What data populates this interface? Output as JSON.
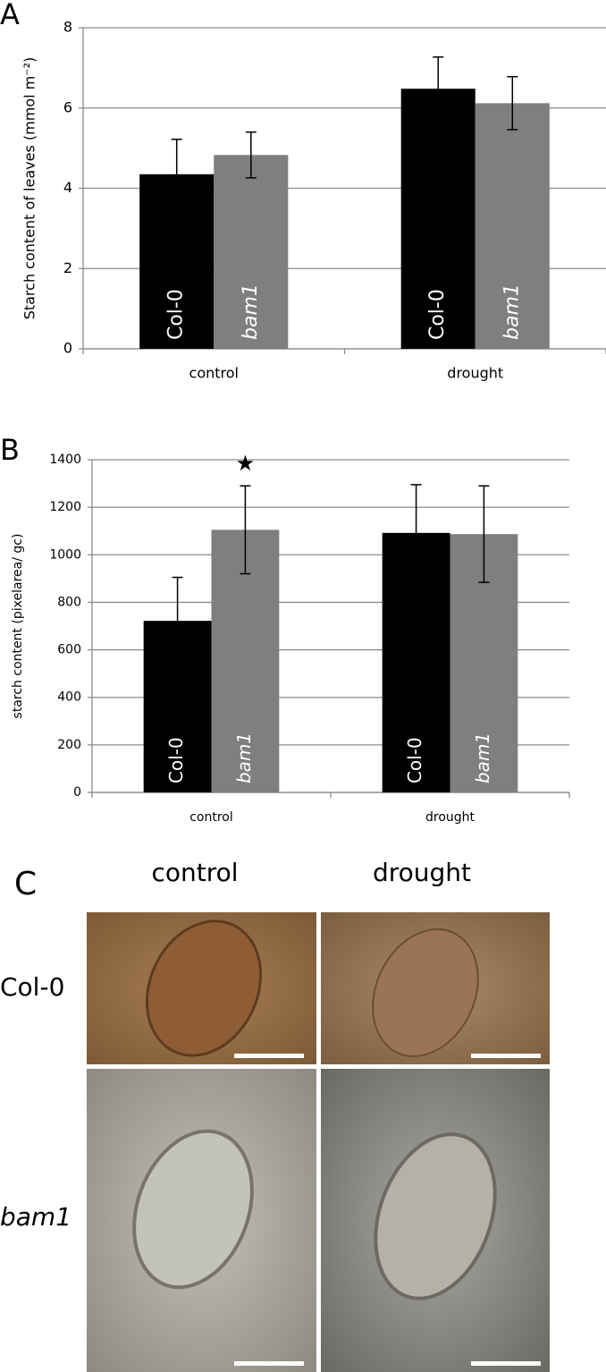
{
  "chart_data": [
    {
      "type": "bar",
      "panel": "A",
      "y_label": "Starch content of leaves (mmol m⁻²)",
      "categories": [
        "control",
        "drought"
      ],
      "series": [
        {
          "name": "Col-0",
          "color": "#000000",
          "values": [
            4.35,
            6.48
          ],
          "errors": [
            0.87,
            0.79
          ]
        },
        {
          "name": "bam1",
          "color": "#7f7f7f",
          "values": [
            4.83,
            6.12
          ],
          "errors": [
            0.57,
            0.66
          ]
        }
      ],
      "ylim": [
        0,
        8
      ],
      "yticks": [
        0,
        2,
        4,
        6,
        8
      ],
      "grid": true
    },
    {
      "type": "bar",
      "panel": "B",
      "y_label": "starch content (pixelarea/ gc)",
      "categories": [
        "control",
        "drought"
      ],
      "series": [
        {
          "name": "Col-0",
          "color": "#000000",
          "values": [
            722,
            1092
          ],
          "errors": [
            183,
            203
          ]
        },
        {
          "name": "bam1",
          "color": "#7f7f7f",
          "values": [
            1105,
            1087
          ],
          "errors": [
            185,
            203
          ],
          "significance": [
            "★",
            null
          ]
        }
      ],
      "ylim": [
        0,
        1400
      ],
      "yticks": [
        0,
        200,
        400,
        600,
        800,
        1000,
        1200,
        1400
      ],
      "grid": true
    }
  ],
  "panel_c": {
    "panel": "C",
    "columns": [
      "control",
      "drought"
    ],
    "rows": [
      "Col-0",
      "bam1"
    ]
  }
}
